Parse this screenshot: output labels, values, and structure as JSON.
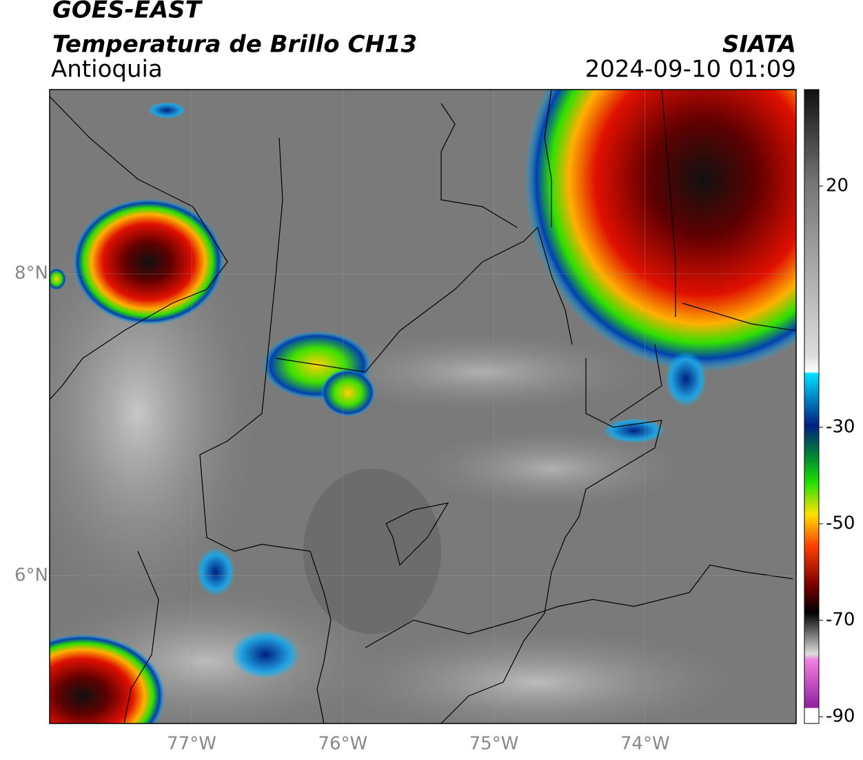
{
  "header": {
    "title": "GOES-EAST",
    "subtitle": "Temperatura de Brillo CH13",
    "region": "Antioquia",
    "source": "SIATA",
    "timestamp": "2024-09-10 01:09"
  },
  "map": {
    "lonlim": [
      -77.94,
      -73.0
    ],
    "latlim": [
      5.02,
      9.22
    ],
    "lon_ticks": [
      {
        "value": -77,
        "label": "77°W"
      },
      {
        "value": -76,
        "label": "76°W"
      },
      {
        "value": -75,
        "label": "75°W"
      },
      {
        "value": -74,
        "label": "74°W"
      }
    ],
    "lat_ticks": [
      {
        "value": 8,
        "label": "8°N"
      },
      {
        "value": 6,
        "label": "6°N"
      }
    ]
  },
  "colorbar": {
    "clim": [
      -91.4,
      40
    ],
    "ticks": [
      20,
      -30,
      -50,
      -70,
      -90
    ]
  }
}
